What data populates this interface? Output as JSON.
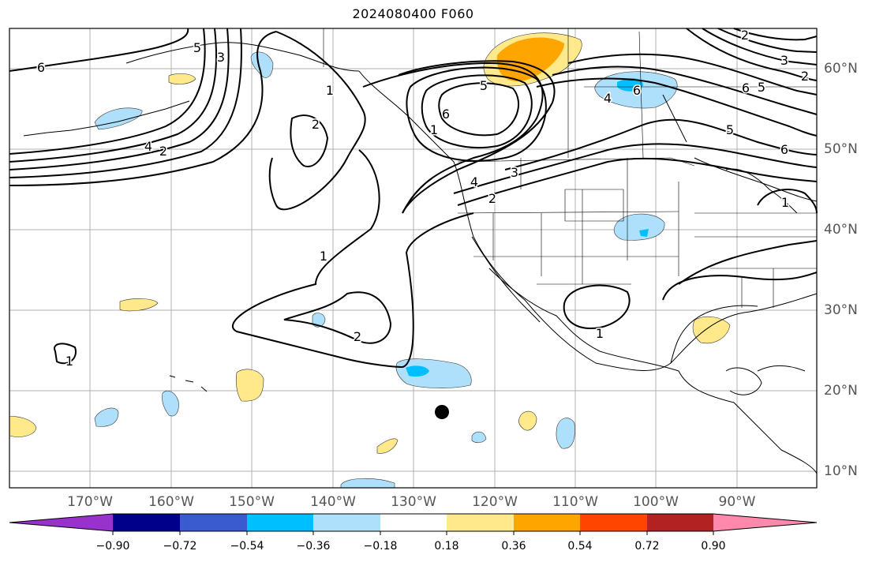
{
  "title": "2024080400 F060",
  "map": {
    "longitude_labels": [
      "170°W",
      "160°W",
      "150°W",
      "140°W",
      "130°W",
      "120°W",
      "110°W",
      "100°W",
      "90°W"
    ],
    "latitude_labels": [
      "60°N",
      "50°N",
      "40°N",
      "30°N",
      "20°N",
      "10°N"
    ],
    "contour_labels": [
      "6",
      "5",
      "4",
      "3",
      "2",
      "1",
      "2",
      "1",
      "2",
      "5",
      "6",
      "4",
      "3",
      "2",
      "1",
      "1",
      "6",
      "5",
      "4",
      "6",
      "5",
      "2",
      "3",
      "6",
      "1",
      "1",
      "2"
    ],
    "marker": "black-dot"
  },
  "colorbar": {
    "colors": [
      "#9932cc",
      "#00008b",
      "#3a5bd0",
      "#00bfff",
      "#aee0fb",
      "#ffffff",
      "#ffe98a",
      "#ffa500",
      "#ff4500",
      "#b22222",
      "#ff89ad"
    ],
    "tick_labels": [
      "−0.90",
      "−0.72",
      "−0.54",
      "−0.36",
      "−0.18",
      "0.18",
      "0.36",
      "0.54",
      "0.72",
      "0.90"
    ]
  }
}
